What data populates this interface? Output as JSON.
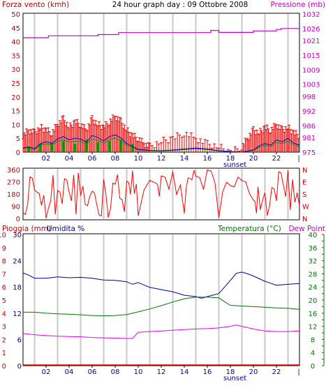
{
  "title": "24 hour graph day : 09 Ottobre 2008",
  "header": {
    "left": "Forza vento (kmh)",
    "right": "Pressione (mb)"
  },
  "bottom_header": {
    "rain": "Pioggia (mm)",
    "humidity": "Umidita %",
    "temperature": "Temperatura (°C)",
    "dewpoint": "Dew Point"
  },
  "x_ticks": [
    "02",
    "04",
    "06",
    "08",
    "10",
    "12",
    "14",
    "16",
    "18",
    "20",
    "22"
  ],
  "sunset_label": "sunset",
  "colors": {
    "wind": "#dd0000",
    "gust": "#ff0000",
    "avg_wind": "#009900",
    "pressure": "#cc00cc",
    "direction": "#ff0000",
    "temperature": "#000099",
    "dewpoint": "#007700",
    "humidity": "#ee00ee",
    "rain": "#ff0000",
    "grid": "#c8c8c8",
    "axis_left_text": "#cc0000",
    "axis_right_text": "#cc00cc",
    "axis_blue_text": "#000099",
    "axis_green_text": "#007700"
  },
  "chart_data": [
    {
      "type": "line",
      "name": "wind-pressure",
      "left_axis": {
        "label": "Forza vento (kmh)",
        "ticks": [
          0,
          5,
          10,
          15,
          20,
          25,
          30,
          35,
          40,
          45,
          50
        ],
        "ylim": [
          0,
          50
        ]
      },
      "right_axis": {
        "label": "Pressione (mb)",
        "ticks": [
          975,
          981,
          986,
          992,
          998,
          1003,
          1009,
          1015,
          1021,
          1026,
          1032
        ],
        "ylim": [
          975,
          1032
        ]
      },
      "pressure": {
        "x": [
          0,
          2,
          2.2,
          5,
          6.5,
          8,
          8.3,
          10,
          12,
          14,
          16,
          16.3,
          17,
          18,
          20,
          22,
          22.4,
          24
        ],
        "y": [
          1022.2,
          1022.2,
          1023.0,
          1023.0,
          1023.5,
          1023.5,
          1024.3,
          1024.3,
          1024.3,
          1024.3,
          1024.3,
          1025.2,
          1024.4,
          1024.4,
          1025.0,
          1025.6,
          1026.0,
          1026.0
        ]
      },
      "gust_envelope": {
        "x": [
          0,
          0.5,
          1,
          1.5,
          2,
          2.5,
          3,
          3.5,
          4,
          4.5,
          5,
          5.5,
          6,
          6.5,
          7,
          7.5,
          8,
          8.5,
          9,
          9.5,
          10,
          10.5,
          11,
          12,
          13,
          14,
          15,
          16,
          17,
          18,
          19,
          19.5,
          20,
          20.5,
          21,
          21.5,
          22,
          22.5,
          23,
          23.5,
          24
        ],
        "y": [
          6,
          8,
          7,
          9,
          8,
          7,
          10,
          12,
          9,
          11,
          10,
          8,
          12,
          10,
          9,
          11,
          13,
          11,
          8,
          6,
          5,
          3,
          2,
          4,
          5,
          7,
          5,
          3,
          2,
          0,
          2,
          5,
          8,
          7,
          9,
          8,
          10,
          8,
          9,
          7,
          6
        ]
      },
      "avg_wind": {
        "x": [
          0,
          0.5,
          1,
          1.5,
          2,
          2.5,
          3,
          3.5,
          4,
          4.5,
          5,
          5.5,
          6,
          6.5,
          7,
          7.5,
          8,
          8.5,
          9,
          9.5,
          10,
          11,
          12,
          13,
          14,
          15,
          16,
          17,
          18,
          19,
          20,
          20.5,
          21,
          21.5,
          22,
          22.5,
          23,
          23.5,
          24
        ],
        "y": [
          1.2,
          1.5,
          1.0,
          2.4,
          3.0,
          2.5,
          3.8,
          4.5,
          3.6,
          4.0,
          3.8,
          2.8,
          4.8,
          4.2,
          3.2,
          4.5,
          5.0,
          4.1,
          2.5,
          1.6,
          0.8,
          0.5,
          0.4,
          0.6,
          0.9,
          1.2,
          0.9,
          0.4,
          0.2,
          0.0,
          0.6,
          1.8,
          2.5,
          2.0,
          3.5,
          3.0,
          4.0,
          2.6,
          2.0
        ]
      },
      "calm_hours": {
        "x": [
          0.5,
          1.5,
          2.5,
          3.5,
          4.5,
          5.5,
          6.5,
          7.5,
          8.5,
          9.5
        ],
        "y": [
          2.0,
          3.0,
          3.5,
          4.0,
          3.0,
          4.5,
          3.5,
          4.0,
          4.5,
          3.0
        ]
      }
    },
    {
      "type": "scatter",
      "name": "wind-direction",
      "left_axis": {
        "ticks": [
          0,
          90,
          180,
          270,
          360
        ],
        "ylim": [
          0,
          360
        ]
      },
      "right_axis": {
        "ticks": [
          "N",
          "W",
          "S",
          "E",
          "N"
        ]
      },
      "x": [
        0,
        0.6,
        1.2,
        1.8,
        2.4,
        3.0,
        3.6,
        4.2,
        4.8,
        5.4,
        6.0,
        6.6,
        7.2,
        7.8,
        8.4,
        9.0,
        9.5,
        10.0,
        11.5,
        12.0,
        13.0,
        14.0,
        14.5,
        15.0,
        16.0,
        17.0,
        18.0,
        19.0,
        20.0,
        20.4,
        21.0,
        21.6,
        22.2,
        22.8,
        23.4,
        24.0
      ],
      "y": [
        40,
        270,
        120,
        60,
        340,
        180,
        230,
        30,
        200,
        90,
        150,
        300,
        50,
        260,
        110,
        200,
        240,
        230,
        235,
        250,
        245,
        260,
        280,
        260,
        270,
        240,
        240,
        240,
        60,
        120,
        40,
        200,
        280,
        60,
        150,
        80
      ]
    },
    {
      "type": "line",
      "name": "rain-humidity-temperature",
      "rain_axis": {
        "label": "Pioggia (mm)",
        "ticks": [
          0,
          1,
          2,
          3,
          4,
          5,
          6,
          7,
          8,
          9,
          10
        ],
        "ylim": [
          0,
          10
        ]
      },
      "humidity_axis": {
        "label": "Umidita %",
        "ticks": [
          0,
          6,
          12,
          18,
          24,
          30
        ],
        "ylim": [
          0,
          30
        ]
      },
      "temperature_axis": {
        "label": "Temperatura (°C)",
        "ticks": [
          0,
          4,
          8,
          12,
          16,
          20,
          24,
          28,
          32,
          36,
          40
        ],
        "ylim": [
          0,
          40
        ]
      },
      "humidity_series": {
        "x": [
          0,
          0.5,
          1,
          2,
          3,
          4,
          5,
          6,
          7,
          8,
          9,
          9.5,
          10,
          11,
          12,
          13,
          14,
          15,
          15.5,
          16,
          17,
          17.5,
          18,
          18.5,
          19,
          19.5,
          20,
          21,
          22,
          23,
          24
        ],
        "y": [
          21.2,
          20.7,
          20.0,
          20.0,
          20.3,
          20.1,
          20.2,
          20.0,
          19.6,
          19.5,
          19.2,
          18.6,
          19.0,
          17.9,
          17.4,
          16.9,
          16.1,
          15.8,
          15.4,
          15.8,
          16.5,
          18.0,
          19.5,
          21.1,
          21.4,
          21.0,
          20.5,
          19.3,
          18.4,
          18.6,
          18.8
        ]
      },
      "temperature_series": {
        "x": [
          0,
          1,
          2,
          3,
          4,
          5,
          6,
          7,
          8,
          9,
          10,
          11,
          12,
          13,
          14,
          15,
          16,
          17,
          17.5,
          18,
          19,
          20,
          21,
          22,
          23,
          24
        ],
        "y": [
          16.3,
          16.3,
          16.0,
          15.8,
          15.7,
          15.5,
          15.3,
          15.2,
          15.3,
          15.6,
          16.4,
          17.3,
          18.3,
          19.4,
          20.4,
          20.9,
          20.9,
          20.7,
          19.5,
          18.4,
          18.2,
          18.0,
          17.8,
          17.6,
          17.5,
          17.2
        ]
      },
      "dewpoint_series": {
        "x": [
          0,
          1,
          2,
          3,
          4,
          5,
          6,
          7,
          8,
          9,
          9.5,
          10,
          11,
          12,
          13,
          14,
          15,
          16,
          17,
          18,
          18.5,
          19,
          19.5,
          20,
          21,
          22,
          23,
          24
        ],
        "y": [
          9.8,
          9.4,
          9.2,
          9.0,
          8.9,
          8.8,
          8.6,
          8.5,
          8.4,
          8.3,
          8.3,
          10.2,
          10.4,
          10.6,
          10.8,
          11.0,
          11.2,
          11.3,
          11.5,
          12.0,
          12.4,
          12.0,
          11.6,
          11.2,
          10.6,
          10.4,
          10.4,
          10.6
        ]
      },
      "rain_series": {
        "x": [
          0,
          24
        ],
        "y": [
          0,
          0
        ]
      }
    }
  ]
}
